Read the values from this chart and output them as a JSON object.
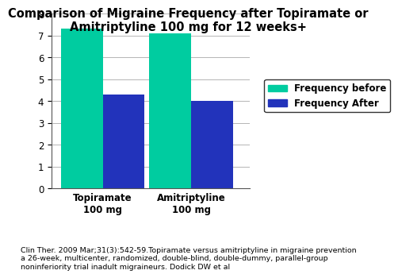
{
  "title": "Comparison of Migraine Frequency after Topiramate or\nAmitriptyline 100 mg for 12 weeks+",
  "categories": [
    "Topiramate\n100 mg",
    "Amitriptyline\n100 mg"
  ],
  "frequency_before": [
    7.3,
    7.1
  ],
  "frequency_after": [
    4.3,
    4.0
  ],
  "bar_color_before": "#00CCA0",
  "bar_color_after": "#2233BB",
  "ylim": [
    0,
    8
  ],
  "yticks": [
    0,
    1,
    2,
    3,
    4,
    5,
    6,
    7,
    8
  ],
  "legend_labels": [
    "Frequency before",
    "Frequency After"
  ],
  "footnote": "Clin Ther. 2009 Mar;31(3):542-59.Topiramate versus amitriptyline in migraine prevention\na 26-week, multicenter, randomized, double-blind, double-dummy, parallel-group\nnoninferiority trial inadult migraineurs. Dodick DW et al",
  "title_fontsize": 10.5,
  "tick_fontsize": 8.5,
  "legend_fontsize": 8.5,
  "footnote_fontsize": 6.8,
  "bar_width": 0.18,
  "background_color": "#ffffff"
}
